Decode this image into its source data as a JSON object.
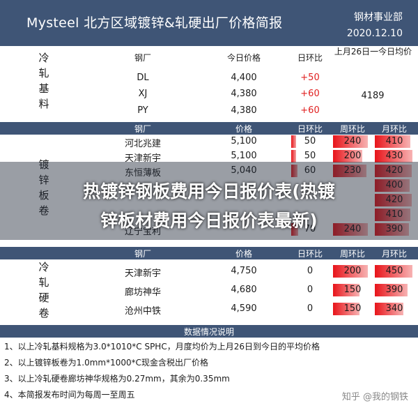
{
  "header": {
    "title": "Mysteel 北方区域镀锌&轧硬出厂价格简报",
    "org": "钢材事业部",
    "date": "2020.12.10"
  },
  "cold": {
    "label": "冷轧基料",
    "headers": {
      "mill": "钢厂",
      "price": "今日价格",
      "change": "日环比",
      "avg": "上月26日一今日均价"
    },
    "avg_value": "4189",
    "rows": [
      {
        "mill": "DL",
        "price": "4,400",
        "change": "+50"
      },
      {
        "mill": "XJ",
        "price": "4,380",
        "change": "+60"
      },
      {
        "mill": "PY",
        "price": "4,380",
        "change": "+60"
      }
    ]
  },
  "galv": {
    "label": "镀锌板卷",
    "headers": {
      "mill": "钢厂",
      "price": "价格",
      "day": "日环比",
      "week": "周环比",
      "month": "月环比"
    },
    "rows": [
      {
        "mill": "河北兆建",
        "price": "5,100",
        "day": "50",
        "week": "240",
        "month": "410"
      },
      {
        "mill": "天津新宇",
        "price": "5,100",
        "day": "50",
        "week": "200",
        "month": "430"
      },
      {
        "mill": "东恒薄板",
        "price": "5,040",
        "day": "60",
        "week": "230",
        "month": "420"
      },
      {
        "mill": "",
        "price": "",
        "day": "",
        "week": "",
        "month": "400"
      },
      {
        "mill": "",
        "price": "",
        "day": "",
        "week": "",
        "month": "420"
      },
      {
        "mill": "",
        "price": "",
        "day": "",
        "week": "",
        "month": "410"
      },
      {
        "mill": "辽宁宝利",
        "price": "",
        "day": "70",
        "week": "240",
        "month": "390"
      }
    ]
  },
  "hard": {
    "label": "冷轧硬卷",
    "headers": {
      "mill": "钢厂",
      "price": "价格",
      "day": "日环比",
      "week": "周环比",
      "month": "月环比"
    },
    "rows": [
      {
        "mill": "天津新宇",
        "price": "4,750",
        "day": "0",
        "week": "200",
        "month": "450"
      },
      {
        "mill": "廊坊神华",
        "price": "4,680",
        "day": "0",
        "week": "150",
        "month": "390"
      },
      {
        "mill": "沧州中铁",
        "price": "4,590",
        "day": "0",
        "week": "150",
        "month": "340"
      }
    ]
  },
  "notes": {
    "title": "数据情况说明",
    "items": [
      "1、以上冷轧基料规格为3.0*1010*C SPHC，月度均价为上月26日到今日的平均价格",
      "2、以上镀锌板卷为1.0mm*1000*C现金含税出厂价格",
      "3、以上冷轧硬卷廊坊神华规格为0.27mm，其余为0.35mm",
      "4、本简报发布时间为每周一至周五"
    ]
  },
  "overlay": {
    "line1": "热镀锌钢板费用今日报价表(热镀",
    "line2": "锌板材费用今日报价表最新)"
  },
  "watermark": "知乎 @我的钢铁",
  "colors": {
    "header_bg": "#3f5576",
    "bar_red": "#e8141a",
    "up_red": "#e02020"
  }
}
